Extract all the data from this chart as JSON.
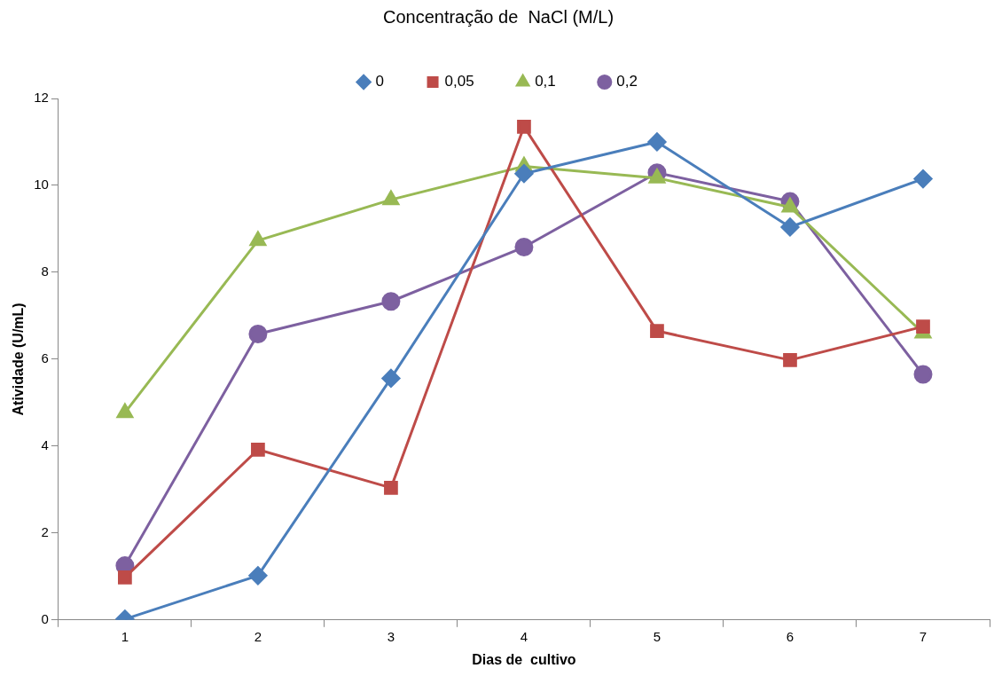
{
  "chart_data": {
    "type": "line",
    "legend_title": "Concentração de  NaCl (M/L)",
    "xlabel": "Dias de  cultivo",
    "ylabel": "Atividade (U/mL)",
    "categories": [
      "1",
      "2",
      "3",
      "4",
      "5",
      "6",
      "7"
    ],
    "ylim": [
      0,
      12
    ],
    "yticks": [
      0,
      2,
      4,
      6,
      8,
      10,
      12
    ],
    "grid": false,
    "legend": "top",
    "line_style": "solid",
    "series": [
      {
        "name": "0",
        "color": "#4a7ebb",
        "marker": "diamond",
        "values": [
          0.02,
          1.02,
          5.56,
          10.27,
          11.0,
          9.04,
          10.15
        ]
      },
      {
        "name": "0,05",
        "color": "#be4b48",
        "marker": "square",
        "values": [
          0.98,
          3.92,
          3.04,
          11.35,
          6.65,
          5.98,
          6.75
        ]
      },
      {
        "name": "0,1",
        "color": "#98b954",
        "marker": "triangle",
        "values": [
          4.77,
          8.73,
          9.67,
          10.44,
          10.17,
          9.5,
          6.6
        ]
      },
      {
        "name": "0,2",
        "color": "#7d60a0",
        "marker": "circle",
        "values": [
          1.25,
          6.58,
          7.33,
          8.58,
          10.29,
          9.63,
          5.65
        ]
      }
    ]
  }
}
